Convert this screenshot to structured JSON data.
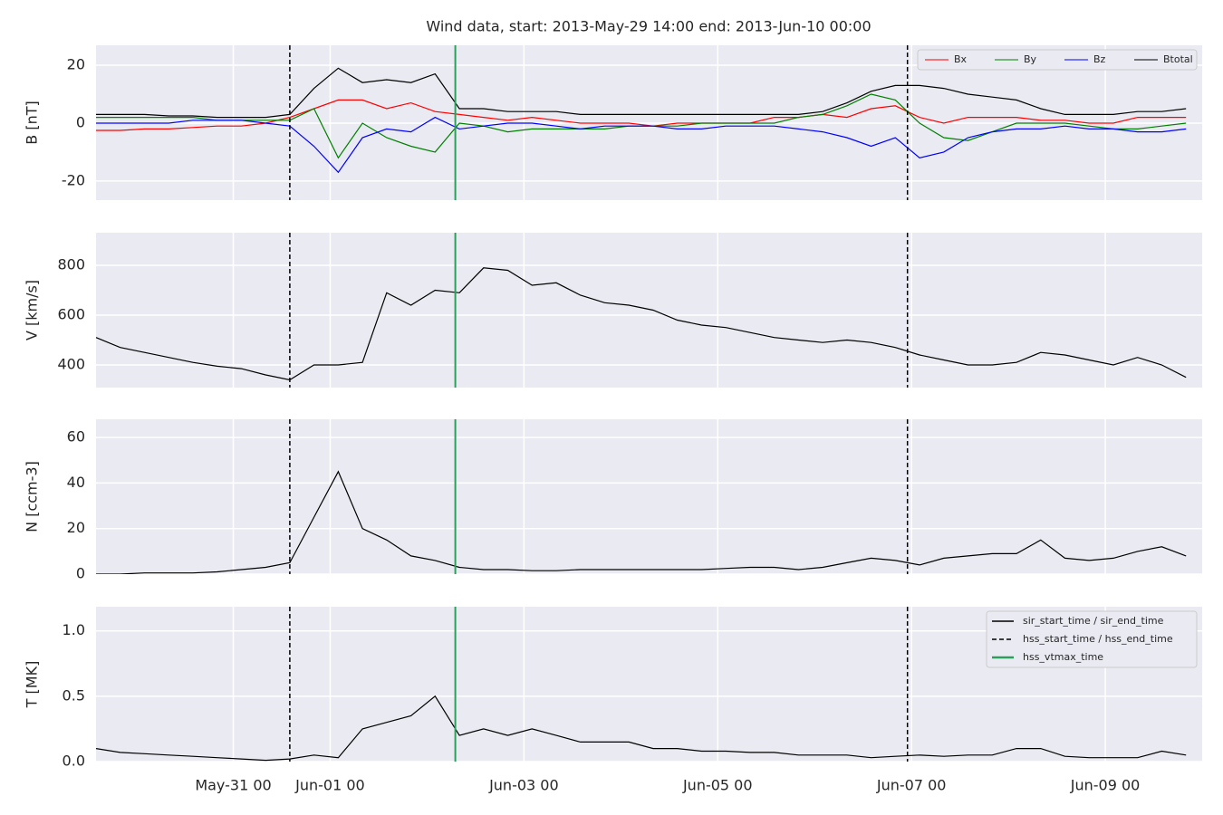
{
  "title": "Wind data, start: 2013-May-29 14:00  end: 2013-Jun-10 00:00",
  "events": [
    {
      "name": "sir_start_time / sir_end_time",
      "style": "solid",
      "color": "#000000",
      "x": []
    },
    {
      "name": "hss_start_time / hss_end_time",
      "style": "dashed",
      "color": "#000000",
      "x": [
        "May-31 14",
        "Jun-06 23"
      ]
    },
    {
      "name": "hss_vtmax_time",
      "style": "solid",
      "color": "#2ca05a",
      "x": [
        "Jun-02 07"
      ]
    }
  ],
  "chart_data": [
    {
      "type": "line",
      "y_label": "B [nT]",
      "legend": "upper right",
      "legend_columns": 4,
      "grid": true,
      "x": [
        "May-29 14",
        "May-29 20",
        "May-30 02",
        "May-30 08",
        "May-30 14",
        "May-30 20",
        "May-31 02",
        "May-31 08",
        "May-31 14",
        "May-31 20",
        "Jun-01 02",
        "Jun-01 08",
        "Jun-01 14",
        "Jun-01 20",
        "Jun-02 02",
        "Jun-02 08",
        "Jun-02 14",
        "Jun-02 20",
        "Jun-03 02",
        "Jun-03 08",
        "Jun-03 14",
        "Jun-03 20",
        "Jun-04 02",
        "Jun-04 08",
        "Jun-04 14",
        "Jun-04 20",
        "Jun-05 02",
        "Jun-05 08",
        "Jun-05 14",
        "Jun-05 20",
        "Jun-06 02",
        "Jun-06 08",
        "Jun-06 14",
        "Jun-06 20",
        "Jun-07 02",
        "Jun-07 08",
        "Jun-07 14",
        "Jun-07 20",
        "Jun-08 02",
        "Jun-08 08",
        "Jun-08 14",
        "Jun-08 20",
        "Jun-09 02",
        "Jun-09 08",
        "Jun-09 14",
        "Jun-09 20"
      ],
      "xlim": [
        "May-29 14",
        "Jun-10 00"
      ],
      "xticks": [
        "May-31 00",
        "Jun-01 00",
        "Jun-03 00",
        "Jun-05 00",
        "Jun-07 00",
        "Jun-09 00"
      ],
      "ylim": [
        -26.6,
        26.9
      ],
      "yticks": [
        -20,
        0,
        20
      ],
      "series": [
        {
          "name": "Bx",
          "color": "#ff0000",
          "values": [
            -2.5,
            -2.5,
            -2,
            -2,
            -1.5,
            -1,
            -1,
            0,
            2,
            5,
            8,
            8,
            5,
            7,
            4,
            3,
            2,
            1,
            2,
            1,
            0,
            0,
            0,
            -1,
            0,
            0,
            0,
            0,
            2,
            2,
            3,
            2,
            5,
            6,
            2,
            0,
            2,
            2,
            2,
            1,
            1,
            0,
            0,
            2,
            2,
            2
          ]
        },
        {
          "name": "By",
          "color": "#008000",
          "values": [
            2,
            2,
            2,
            2,
            2,
            1,
            1,
            1,
            1,
            5,
            -12,
            0,
            -5,
            -8,
            -10,
            0,
            -1,
            -3,
            -2,
            -2,
            -2,
            -2,
            -1,
            -1,
            -1,
            0,
            0,
            0,
            0,
            2,
            3,
            6,
            10,
            8,
            0,
            -5,
            -6,
            -3,
            0,
            0,
            0,
            -1,
            -2,
            -2,
            -1,
            0
          ]
        },
        {
          "name": "Bz",
          "color": "#0000ff",
          "values": [
            0,
            0,
            0,
            0,
            1,
            1,
            1,
            0,
            -1,
            -8,
            -17,
            -5,
            -2,
            -3,
            2,
            -2,
            -1,
            0,
            0,
            -1,
            -2,
            -1,
            -1,
            -1,
            -2,
            -2,
            -1,
            -1,
            -1,
            -2,
            -3,
            -5,
            -8,
            -5,
            -12,
            -10,
            -5,
            -3,
            -2,
            -2,
            -1,
            -2,
            -2,
            -3,
            -3,
            -2
          ]
        },
        {
          "name": "Btotal",
          "color": "#000000",
          "values": [
            3,
            3,
            3,
            2.5,
            2.5,
            2,
            2,
            2,
            3,
            12,
            19,
            14,
            15,
            14,
            17,
            5,
            5,
            4,
            4,
            4,
            3,
            3,
            3,
            3,
            3,
            3,
            3,
            3,
            3,
            3,
            4,
            7,
            11,
            13,
            13,
            12,
            10,
            9,
            8,
            5,
            3,
            3,
            3,
            4,
            4,
            5
          ]
        }
      ]
    },
    {
      "type": "line",
      "y_label": "V [km/s]",
      "grid": true,
      "x": [
        "May-29 14",
        "May-29 20",
        "May-30 02",
        "May-30 08",
        "May-30 14",
        "May-30 20",
        "May-31 02",
        "May-31 08",
        "May-31 14",
        "May-31 20",
        "Jun-01 02",
        "Jun-01 08",
        "Jun-01 14",
        "Jun-01 20",
        "Jun-02 02",
        "Jun-02 08",
        "Jun-02 14",
        "Jun-02 20",
        "Jun-03 02",
        "Jun-03 08",
        "Jun-03 14",
        "Jun-03 20",
        "Jun-04 02",
        "Jun-04 08",
        "Jun-04 14",
        "Jun-04 20",
        "Jun-05 02",
        "Jun-05 08",
        "Jun-05 14",
        "Jun-05 20",
        "Jun-06 02",
        "Jun-06 08",
        "Jun-06 14",
        "Jun-06 20",
        "Jun-07 02",
        "Jun-07 08",
        "Jun-07 14",
        "Jun-07 20",
        "Jun-08 02",
        "Jun-08 08",
        "Jun-08 14",
        "Jun-08 20",
        "Jun-09 02",
        "Jun-09 08",
        "Jun-09 14",
        "Jun-09 20"
      ],
      "xlim": [
        "May-29 14",
        "Jun-10 00"
      ],
      "xticks": [
        "May-31 00",
        "Jun-01 00",
        "Jun-03 00",
        "Jun-05 00",
        "Jun-07 00",
        "Jun-09 00"
      ],
      "ylim": [
        309,
        931
      ],
      "yticks": [
        400,
        600,
        800
      ],
      "series": [
        {
          "color": "#000000",
          "values": [
            510,
            470,
            450,
            430,
            410,
            395,
            385,
            360,
            340,
            400,
            400,
            410,
            690,
            640,
            700,
            690,
            790,
            780,
            720,
            730,
            680,
            650,
            640,
            620,
            580,
            560,
            550,
            530,
            510,
            500,
            490,
            500,
            490,
            470,
            440,
            420,
            400,
            400,
            410,
            450,
            440,
            420,
            400,
            430,
            400,
            350
          ]
        }
      ]
    },
    {
      "type": "line",
      "y_label": "N [ccm-3]",
      "grid": true,
      "x": [
        "May-29 14",
        "May-29 20",
        "May-30 02",
        "May-30 08",
        "May-30 14",
        "May-30 20",
        "May-31 02",
        "May-31 08",
        "May-31 14",
        "May-31 20",
        "Jun-01 02",
        "Jun-01 08",
        "Jun-01 14",
        "Jun-01 20",
        "Jun-02 02",
        "Jun-02 08",
        "Jun-02 14",
        "Jun-02 20",
        "Jun-03 02",
        "Jun-03 08",
        "Jun-03 14",
        "Jun-03 20",
        "Jun-04 02",
        "Jun-04 08",
        "Jun-04 14",
        "Jun-04 20",
        "Jun-05 02",
        "Jun-05 08",
        "Jun-05 14",
        "Jun-05 20",
        "Jun-06 02",
        "Jun-06 08",
        "Jun-06 14",
        "Jun-06 20",
        "Jun-07 02",
        "Jun-07 08",
        "Jun-07 14",
        "Jun-07 20",
        "Jun-08 02",
        "Jun-08 08",
        "Jun-08 14",
        "Jun-08 20",
        "Jun-09 02",
        "Jun-09 08",
        "Jun-09 14",
        "Jun-09 20"
      ],
      "xlim": [
        "May-29 14",
        "Jun-10 00"
      ],
      "xticks": [
        "May-31 00",
        "Jun-01 00",
        "Jun-03 00",
        "Jun-05 00",
        "Jun-07 00",
        "Jun-09 00"
      ],
      "ylim": [
        0,
        68
      ],
      "yticks": [
        0,
        20,
        40,
        60
      ],
      "series": [
        {
          "color": "#000000",
          "values": [
            0,
            0,
            0.5,
            0.5,
            0.5,
            1,
            2,
            3,
            5,
            25,
            45,
            20,
            15,
            8,
            6,
            3,
            2,
            2,
            1.5,
            1.5,
            2,
            2,
            2,
            2,
            2,
            2,
            2.5,
            3,
            3,
            2,
            3,
            5,
            7,
            6,
            4,
            7,
            8,
            9,
            9,
            15,
            7,
            6,
            7,
            10,
            12,
            8
          ]
        }
      ]
    },
    {
      "type": "line",
      "y_label": "T [MK]",
      "grid": true,
      "legend": "upper right",
      "legend_columns": 1,
      "x": [
        "May-29 14",
        "May-29 20",
        "May-30 02",
        "May-30 08",
        "May-30 14",
        "May-30 20",
        "May-31 02",
        "May-31 08",
        "May-31 14",
        "May-31 20",
        "Jun-01 02",
        "Jun-01 08",
        "Jun-01 14",
        "Jun-01 20",
        "Jun-02 02",
        "Jun-02 08",
        "Jun-02 14",
        "Jun-02 20",
        "Jun-03 02",
        "Jun-03 08",
        "Jun-03 14",
        "Jun-03 20",
        "Jun-04 02",
        "Jun-04 08",
        "Jun-04 14",
        "Jun-04 20",
        "Jun-05 02",
        "Jun-05 08",
        "Jun-05 14",
        "Jun-05 20",
        "Jun-06 02",
        "Jun-06 08",
        "Jun-06 14",
        "Jun-06 20",
        "Jun-07 02",
        "Jun-07 08",
        "Jun-07 14",
        "Jun-07 20",
        "Jun-08 02",
        "Jun-08 08",
        "Jun-08 14",
        "Jun-08 20",
        "Jun-09 02",
        "Jun-09 08",
        "Jun-09 14",
        "Jun-09 20"
      ],
      "xlim": [
        "May-29 14",
        "Jun-10 00"
      ],
      "xticks": [
        "May-31 00",
        "Jun-01 00",
        "Jun-03 00",
        "Jun-05 00",
        "Jun-07 00",
        "Jun-09 00"
      ],
      "ylim": [
        0,
        1.185
      ],
      "yticks": [
        {
          "value": 0,
          "label": "0.0"
        },
        0.5,
        {
          "value": 1,
          "label": "1.0"
        }
      ],
      "series": [
        {
          "color": "#000000",
          "values": [
            0.1,
            0.07,
            0.06,
            0.05,
            0.04,
            0.03,
            0.02,
            0.01,
            0.02,
            0.05,
            0.03,
            0.25,
            0.3,
            0.35,
            0.5,
            0.2,
            0.25,
            0.2,
            0.25,
            0.2,
            0.15,
            0.15,
            0.15,
            0.1,
            0.1,
            0.08,
            0.08,
            0.07,
            0.07,
            0.05,
            0.05,
            0.05,
            0.03,
            0.04,
            0.05,
            0.04,
            0.05,
            0.05,
            0.1,
            0.1,
            0.04,
            0.03,
            0.03,
            0.03,
            0.08,
            0.05
          ]
        }
      ]
    }
  ]
}
